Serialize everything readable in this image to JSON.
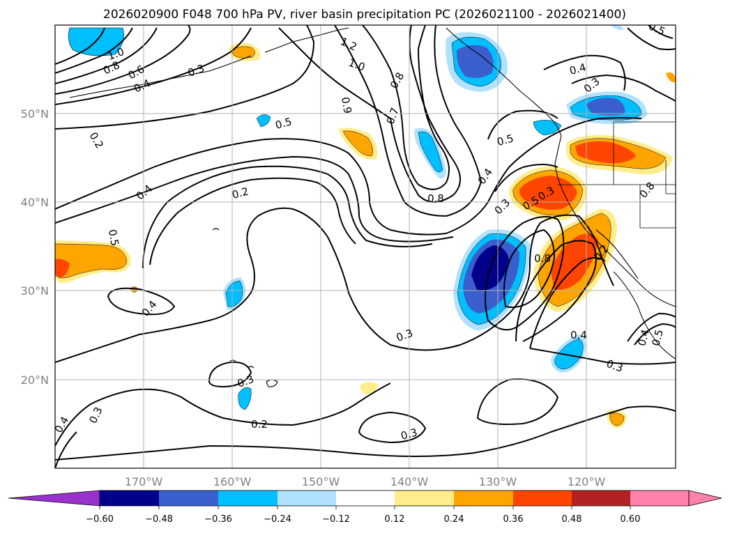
{
  "title": "2026020900 F048 700 hPa PV, river basin precipitation PC (2026021100 - 2026021400)",
  "map": {
    "lon_range": [
      -180,
      -110
    ],
    "lat_range": [
      10,
      60
    ],
    "lon_ticks": [
      "170°W",
      "160°W",
      "150°W",
      "140°W",
      "130°W",
      "120°W"
    ],
    "lat_ticks": [
      "50°N",
      "40°N",
      "30°N",
      "20°N"
    ],
    "grid": true
  },
  "contour_labels": [
    "1.0",
    "0.8",
    "0.6",
    "0.4",
    "0.3",
    "1.2",
    "1.0",
    "0.9",
    "0.8",
    "0.7",
    "0.5",
    "0.2",
    "0.4",
    "0.2",
    "0.5",
    "0.4",
    "0.8",
    "0.5",
    "0.4",
    "0.3",
    "0.5",
    "0.3",
    "0.8",
    "0.2",
    "0.8",
    "0.4",
    "0.3",
    "0.3",
    "0.3",
    "0.3",
    "0.2",
    "0.3",
    "0.4",
    "0.4",
    "0.5",
    "0.4",
    "0.3",
    "0.5"
  ],
  "colorbar": {
    "ticks": [
      "−0.60",
      "−0.48",
      "−0.36",
      "−0.24",
      "−0.12",
      "0.12",
      "0.24",
      "0.36",
      "0.48",
      "0.60"
    ],
    "colors": [
      "#9932cc",
      "#00008b",
      "#3a5fcd",
      "#00bfff",
      "#b0e2ff",
      "#ffffff",
      "#ffec8b",
      "#ffa500",
      "#ff4500",
      "#b22222",
      "#ff82ab"
    ],
    "extend": "both"
  }
}
